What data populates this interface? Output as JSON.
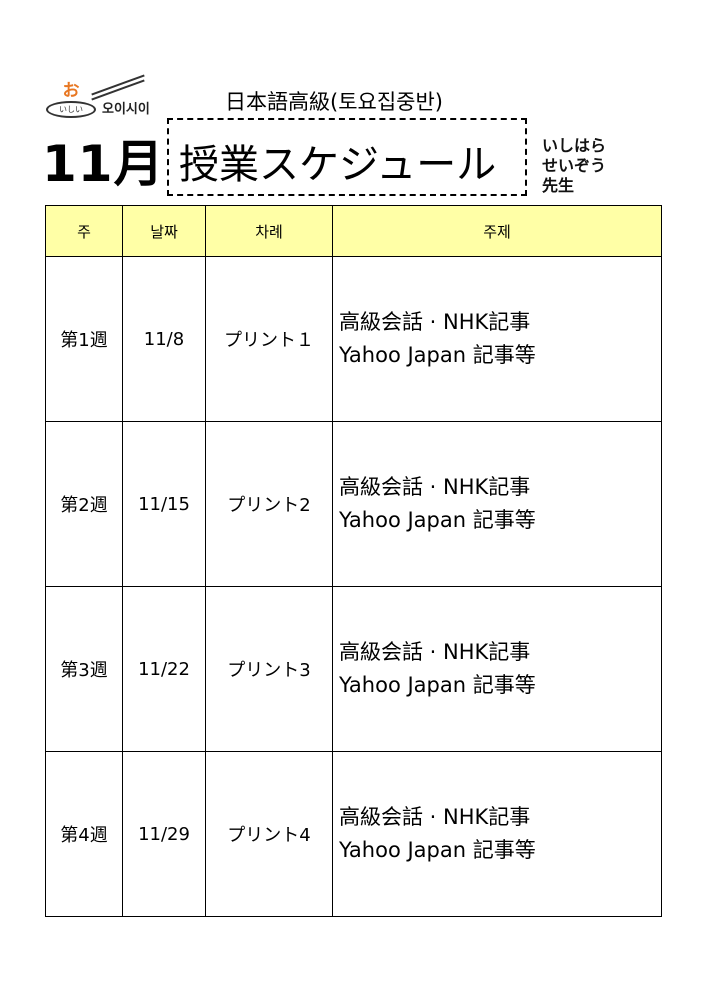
{
  "logo": {
    "mark": "お",
    "ellipse_text": "いしい",
    "name": "오이시이",
    "brand_color": "#e87722"
  },
  "header": {
    "subtitle": "日本語高級(토요집중반)",
    "month": "11月",
    "title": "授業スケジュール",
    "teacher": [
      "いしはら",
      "せいぞう",
      "先生"
    ]
  },
  "table": {
    "columns": [
      "주",
      "날짜",
      "차례",
      "주제"
    ],
    "header_bg": "#ffffa6",
    "rows": [
      {
        "week": "第1週",
        "date": "11/8",
        "material": "プリント１",
        "topic1": "高級会話 · NHK記事",
        "topic2": "Yahoo Japan 記事等"
      },
      {
        "week": "第2週",
        "date": "11/15",
        "material": "プリント2",
        "topic1": "高級会話 · NHK記事",
        "topic2": "Yahoo Japan 記事等"
      },
      {
        "week": "第3週",
        "date": "11/22",
        "material": "プリント3",
        "topic1": "高級会話 · NHK記事",
        "topic2": "Yahoo Japan 記事等"
      },
      {
        "week": "第4週",
        "date": "11/29",
        "material": "プリント4",
        "topic1": "高級会話 · NHK記事",
        "topic2": "Yahoo Japan 記事等"
      }
    ]
  }
}
